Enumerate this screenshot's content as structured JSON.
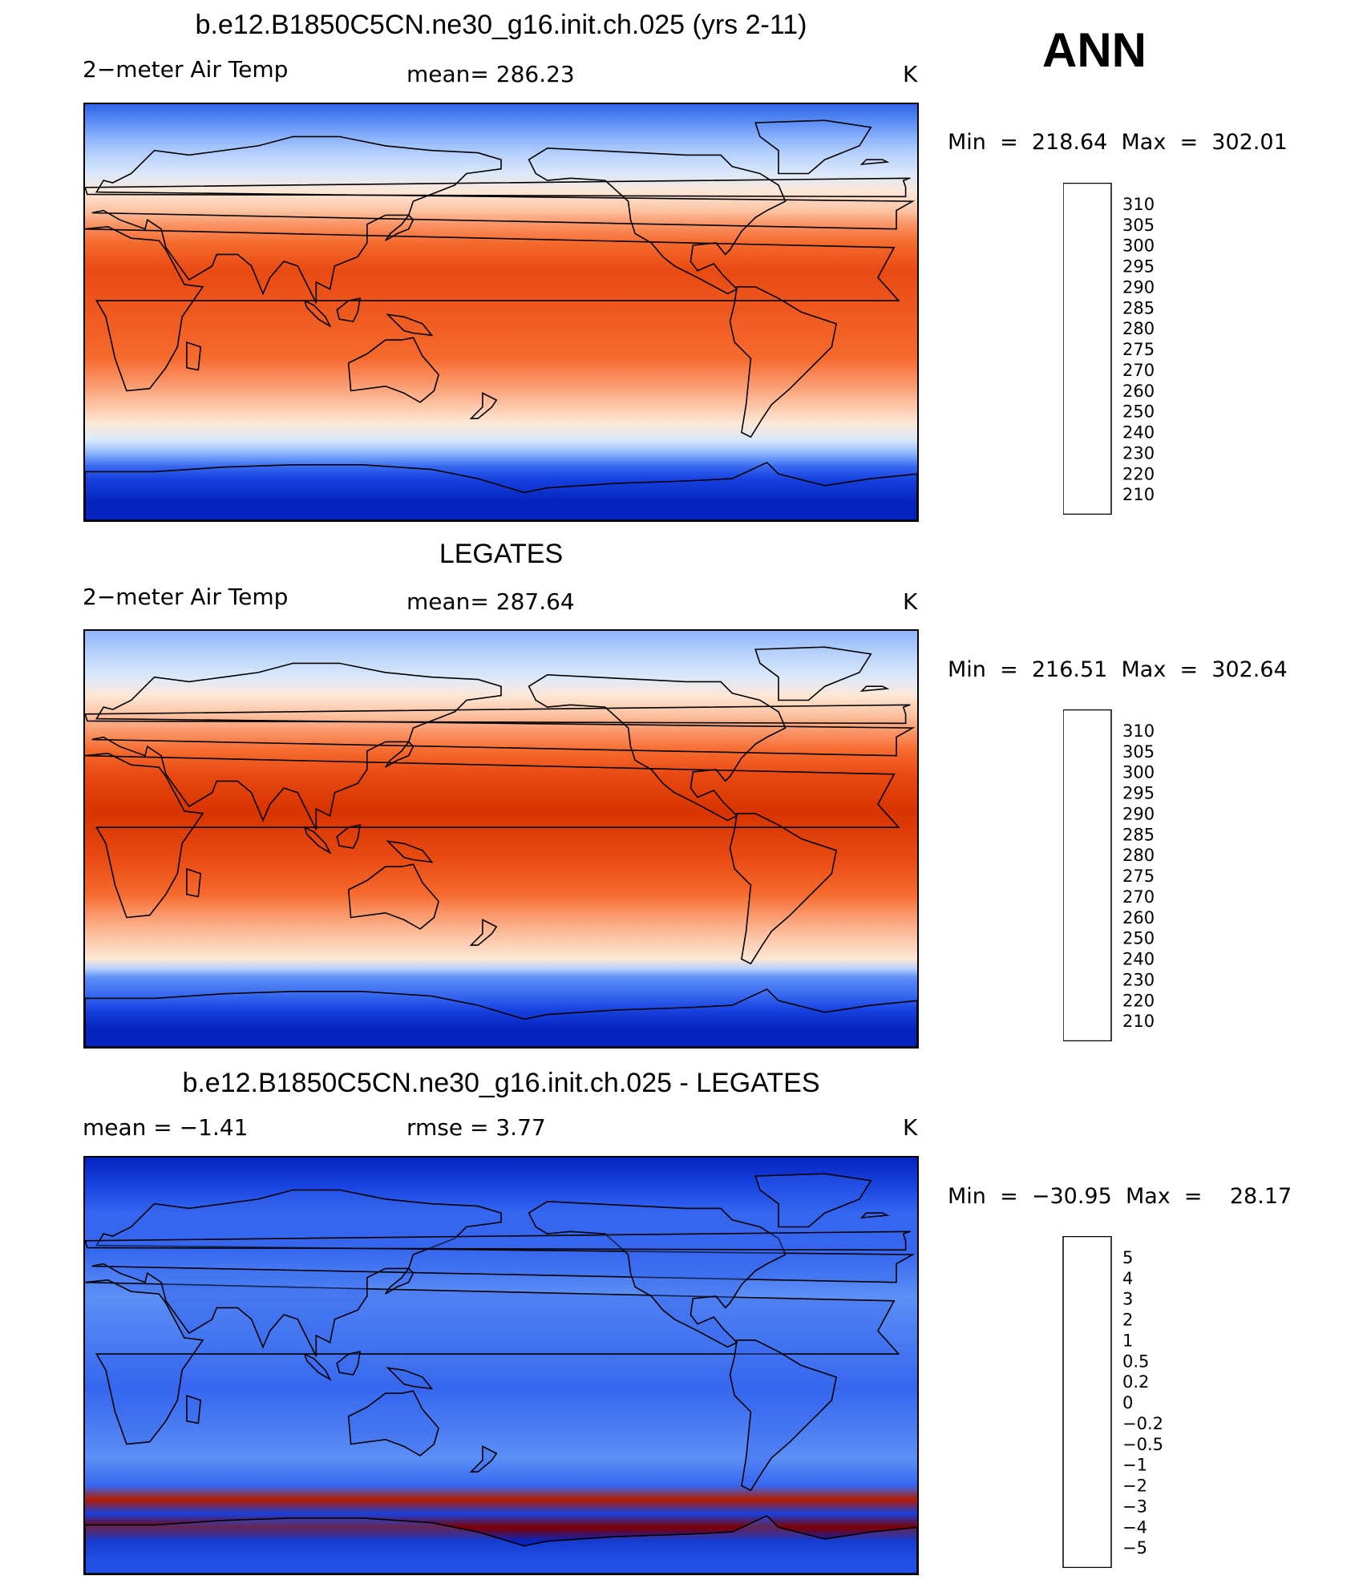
{
  "season": "ANN",
  "panels": [
    {
      "id": "model",
      "title": "b.e12.B1850C5CN.ne30_g16.init.ch.025 (yrs 2-11)",
      "left_label": "2−meter Air Temp",
      "center_label": "mean=  286.23",
      "right_label": "K",
      "minmax": "Min  =  218.64  Max  =  302.01",
      "colorbar": {
        "labels": [
          "310",
          "305",
          "300",
          "295",
          "290",
          "285",
          "280",
          "275",
          "270",
          "260",
          "250",
          "240",
          "230",
          "220",
          "210"
        ],
        "colors": [
          "#7f0000",
          "#b51c00",
          "#d83300",
          "#e84a12",
          "#f66a2e",
          "#fa9466",
          "#fcc3a3",
          "#fde8d6",
          "#dbe9fb",
          "#b8d2fb",
          "#8eb4fb",
          "#5d8ff6",
          "#3666ef",
          "#1842e0",
          "#0524bf",
          "#001a8c"
        ]
      },
      "bands": [
        {
          "lat": 90,
          "c": "#2f64e8"
        },
        {
          "lat": 82,
          "c": "#5d8ff6"
        },
        {
          "lat": 75,
          "c": "#8eb4fb"
        },
        {
          "lat": 68,
          "c": "#b8d2fb"
        },
        {
          "lat": 60,
          "c": "#dbe9fb"
        },
        {
          "lat": 52,
          "c": "#fde8d6"
        },
        {
          "lat": 44,
          "c": "#fcc3a3"
        },
        {
          "lat": 38,
          "c": "#fa9466"
        },
        {
          "lat": 30,
          "c": "#f66a2e"
        },
        {
          "lat": 18,
          "c": "#e84a12"
        },
        {
          "lat": -20,
          "c": "#f66a2e"
        },
        {
          "lat": -30,
          "c": "#fa9466"
        },
        {
          "lat": -40,
          "c": "#fcc3a3"
        },
        {
          "lat": -48,
          "c": "#fde8d6"
        },
        {
          "lat": -55,
          "c": "#dbe9fb"
        },
        {
          "lat": -58,
          "c": "#b8d2fb"
        },
        {
          "lat": -61,
          "c": "#8eb4fb"
        },
        {
          "lat": -64,
          "c": "#5d8ff6"
        },
        {
          "lat": -67,
          "c": "#3666ef"
        },
        {
          "lat": -72,
          "c": "#1842e0"
        },
        {
          "lat": -82,
          "c": "#0524bf"
        }
      ]
    },
    {
      "id": "obs",
      "title": "LEGATES",
      "left_label": "2−meter Air Temp",
      "center_label": "mean=  287.64",
      "right_label": "K",
      "minmax": "Min  =  216.51  Max  =  302.64",
      "colorbar": {
        "labels": [
          "310",
          "305",
          "300",
          "295",
          "290",
          "285",
          "280",
          "275",
          "270",
          "260",
          "250",
          "240",
          "230",
          "220",
          "210"
        ],
        "colors": [
          "#7f0000",
          "#b51c00",
          "#d83300",
          "#e84a12",
          "#f66a2e",
          "#fa9466",
          "#fcc3a3",
          "#fde8d6",
          "#dbe9fb",
          "#b8d2fb",
          "#8eb4fb",
          "#5d8ff6",
          "#3666ef",
          "#1842e0",
          "#0524bf",
          "#001a8c"
        ]
      },
      "bands": [
        {
          "lat": 90,
          "c": "#8eb4fb"
        },
        {
          "lat": 80,
          "c": "#b8d2fb"
        },
        {
          "lat": 70,
          "c": "#dbe9fb"
        },
        {
          "lat": 62,
          "c": "#fde8d6"
        },
        {
          "lat": 54,
          "c": "#fcc3a3"
        },
        {
          "lat": 46,
          "c": "#fa9466"
        },
        {
          "lat": 38,
          "c": "#f66a2e"
        },
        {
          "lat": 28,
          "c": "#e84a12"
        },
        {
          "lat": 12,
          "c": "#d83300"
        },
        {
          "lat": -8,
          "c": "#e84a12"
        },
        {
          "lat": -24,
          "c": "#f66a2e"
        },
        {
          "lat": -32,
          "c": "#fa9466"
        },
        {
          "lat": -42,
          "c": "#fcc3a3"
        },
        {
          "lat": -52,
          "c": "#fde8d6"
        },
        {
          "lat": -56,
          "c": "#b8d2fb"
        },
        {
          "lat": -60,
          "c": "#5d8ff6"
        },
        {
          "lat": -68,
          "c": "#3666ef"
        },
        {
          "lat": -74,
          "c": "#1842e0"
        },
        {
          "lat": -82,
          "c": "#0524bf"
        }
      ]
    },
    {
      "id": "diff",
      "title": "b.e12.B1850C5CN.ne30_g16.init.ch.025 - LEGATES",
      "left_label": "mean =    −1.41",
      "center_label": "rmse =     3.77",
      "right_label": "K",
      "minmax": "Min  =  −30.95  Max  =    28.17",
      "colorbar": {
        "labels": [
          "5",
          "4",
          "3",
          "2",
          "1",
          "0.5",
          "0.2",
          "0",
          "−0.2",
          "−0.5",
          "−1",
          "−2",
          "−3",
          "−4",
          "−5"
        ],
        "colors": [
          "#7f0000",
          "#b51c00",
          "#d83300",
          "#e84a12",
          "#f66a2e",
          "#fa9466",
          "#fcc3a3",
          "#fde8d6",
          "#dbe9fb",
          "#b8d2fb",
          "#8eb4fb",
          "#5d8ff6",
          "#3666ef",
          "#1842e0",
          "#0524bf",
          "#001a8c"
        ]
      },
      "bands": [
        {
          "lat": 90,
          "c": "#0524bf"
        },
        {
          "lat": 78,
          "c": "#1842e0"
        },
        {
          "lat": 66,
          "c": "#3666ef"
        },
        {
          "lat": 50,
          "c": "#3666ef"
        },
        {
          "lat": 30,
          "c": "#5d8ff6"
        },
        {
          "lat": -10,
          "c": "#3666ef"
        },
        {
          "lat": -40,
          "c": "#5d8ff6"
        },
        {
          "lat": -52,
          "c": "#3666ef"
        },
        {
          "lat": -58,
          "c": "#b51c00"
        },
        {
          "lat": -64,
          "c": "#1842e0"
        },
        {
          "lat": -70,
          "c": "#7f0000"
        },
        {
          "lat": -76,
          "c": "#0524bf"
        },
        {
          "lat": -84,
          "c": "#1842e0"
        }
      ]
    }
  ]
}
